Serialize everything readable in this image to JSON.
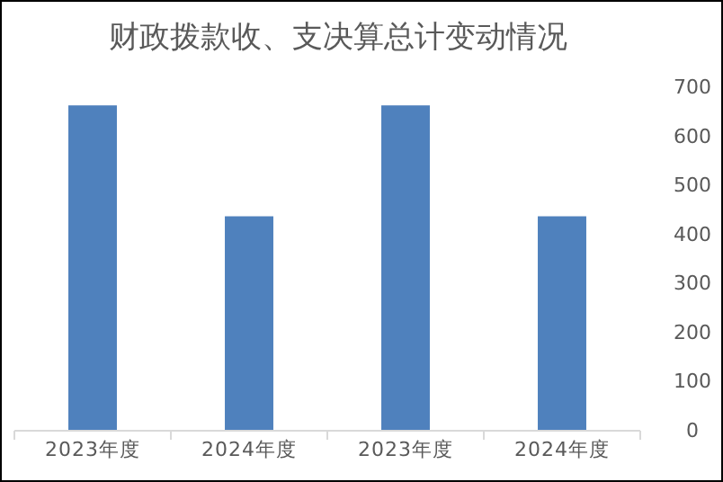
{
  "chart_data": {
    "type": "bar",
    "title": "财政拨款收、支决算总计变动情况",
    "categories": [
      "2023年度",
      "2024年度",
      "2023年度",
      "2024年度"
    ],
    "values": [
      663,
      437,
      663,
      437
    ],
    "color": "#4f81bd",
    "ylim": [
      0,
      700
    ],
    "yticks": [
      0,
      100,
      200,
      300,
      400,
      500,
      600,
      700
    ],
    "grid": false,
    "legend": false
  }
}
